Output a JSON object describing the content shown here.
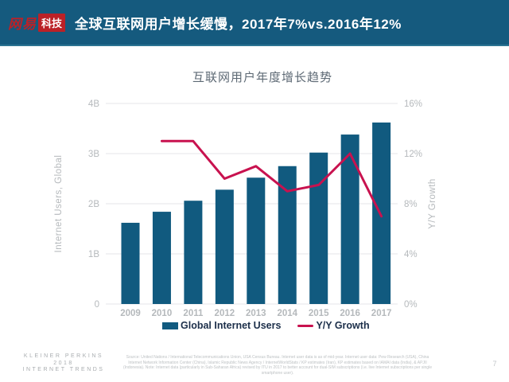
{
  "header": {
    "logo_primary": "网易",
    "logo_secondary": "科技",
    "title": "全球互联网用户增长缓慢，2017年7%vs.2016年12%"
  },
  "chart_data": {
    "type": "bar",
    "subtype": "bar-line-combo",
    "title": "互联网用户年度增长趋势",
    "categories": [
      "2009",
      "2010",
      "2011",
      "2012",
      "2013",
      "2014",
      "2015",
      "2016",
      "2017"
    ],
    "series": [
      {
        "name": "Global Internet Users",
        "type": "bar",
        "axis": "left",
        "unit": "billions",
        "values": [
          1.62,
          1.84,
          2.06,
          2.28,
          2.52,
          2.75,
          3.02,
          3.38,
          3.62
        ]
      },
      {
        "name": "Y/Y Growth",
        "type": "line",
        "axis": "right",
        "unit": "%",
        "values": [
          null,
          13,
          13,
          10,
          11,
          9,
          9.5,
          12,
          7
        ]
      }
    ],
    "left_axis": {
      "label": "Internet Users, Global",
      "ticks": [
        "0",
        "1B",
        "2B",
        "3B",
        "4B"
      ],
      "tick_values": [
        0,
        1,
        2,
        3,
        4
      ],
      "range": [
        0,
        4
      ]
    },
    "right_axis": {
      "label": "Y/Y Growth",
      "ticks": [
        "0%",
        "4%",
        "8%",
        "12%",
        "16%"
      ],
      "tick_values": [
        0,
        4,
        8,
        12,
        16
      ],
      "range": [
        0,
        16
      ]
    },
    "grid": "horizontal",
    "legend_position": "bottom"
  },
  "legend": {
    "items": [
      {
        "label": "Global Internet Users"
      },
      {
        "label": "Y/Y Growth"
      }
    ]
  },
  "colors": {
    "header_bg": "#155a7e",
    "logo_red": "#bb2127",
    "bar": "#115a7f",
    "line": "#c8124f",
    "gridline": "#e4e6e8",
    "tick_text": "#b5b9bc",
    "legend_text": "#1c2f4a",
    "chart_title_text": "#5d6974"
  },
  "footer": {
    "brand_lines": [
      "KLEINER PERKINS",
      "2018",
      "INTERNET TRENDS"
    ],
    "source": "Source: United Nations / International Telecommunications Union, USA Census Bureau. Internet user data is as of mid-year. Internet user data: Pew Research (USA), China Internet Network Information Center (China), Islamic Republic News Agency / InternetWorldStats / KP estimates (Iran), KP estimates based on IAMAI data (India), & APJII (Indonesia). Note: Internet data (particularly in Sub-Saharan Africa) revised by ITU in 2017 to better account for dual-SIM subscriptions (i.e. live Internet subscriptions per single smartphone user).",
    "page_number": "7"
  }
}
